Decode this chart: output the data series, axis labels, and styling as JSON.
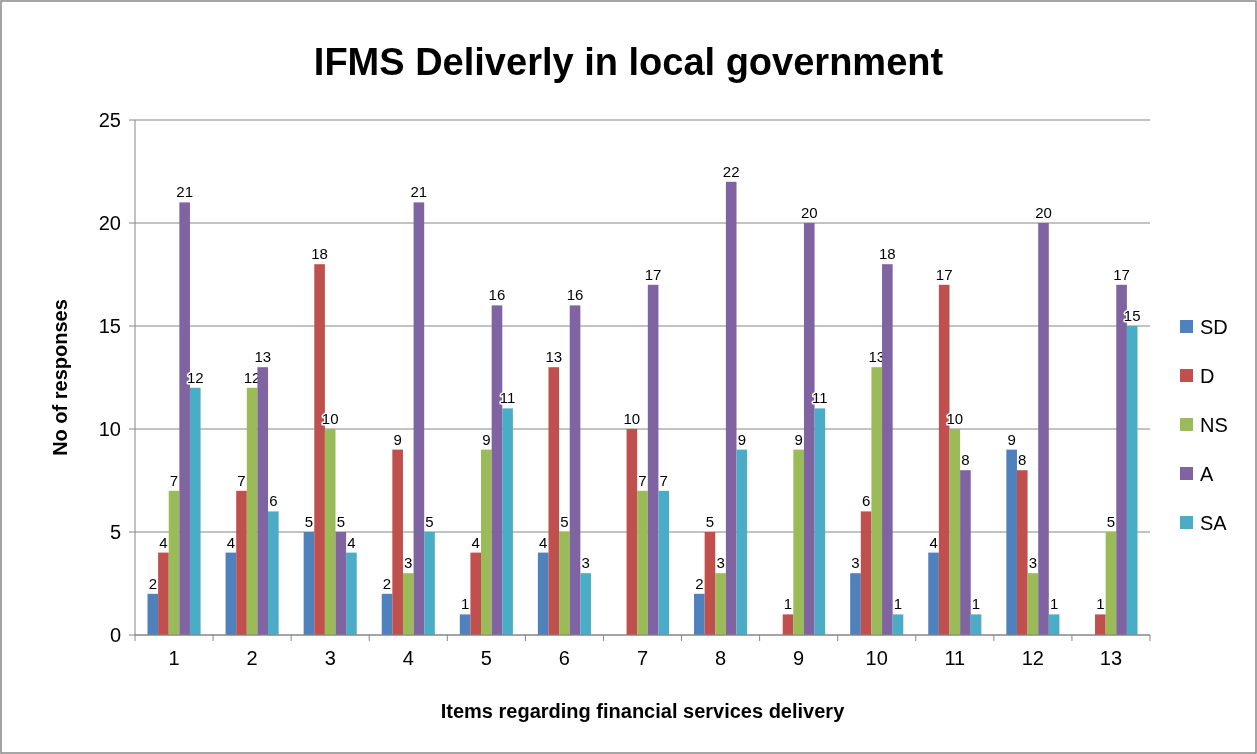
{
  "chart_data": {
    "type": "bar",
    "title": "IFMS Deliverly in local government",
    "xlabel": "Items regarding  financial services delivery",
    "ylabel": "No of responses",
    "categories": [
      "1",
      "2",
      "3",
      "4",
      "5",
      "6",
      "7",
      "8",
      "9",
      "10",
      "11",
      "12",
      "13"
    ],
    "series": [
      {
        "name": "SD",
        "color": "#4f81bd",
        "values": [
          2,
          4,
          5,
          2,
          1,
          4,
          null,
          2,
          null,
          3,
          4,
          9,
          null
        ]
      },
      {
        "name": "D",
        "color": "#c0504d",
        "values": [
          4,
          7,
          18,
          9,
          4,
          13,
          10,
          5,
          1,
          6,
          17,
          8,
          1
        ]
      },
      {
        "name": "NS",
        "color": "#9bbb59",
        "values": [
          7,
          12,
          10,
          3,
          9,
          5,
          7,
          3,
          9,
          13,
          10,
          3,
          5
        ]
      },
      {
        "name": "A",
        "color": "#8064a2",
        "values": [
          21,
          13,
          5,
          21,
          16,
          16,
          17,
          22,
          20,
          18,
          8,
          20,
          17
        ]
      },
      {
        "name": "SA",
        "color": "#4bacc6",
        "values": [
          12,
          6,
          4,
          5,
          11,
          3,
          7,
          9,
          11,
          1,
          1,
          1,
          15
        ]
      }
    ],
    "ylim": [
      0,
      25
    ],
    "yticks": [
      0,
      5,
      10,
      15,
      20,
      25
    ],
    "grid": "y",
    "legend": "right",
    "data_labels": true
  }
}
